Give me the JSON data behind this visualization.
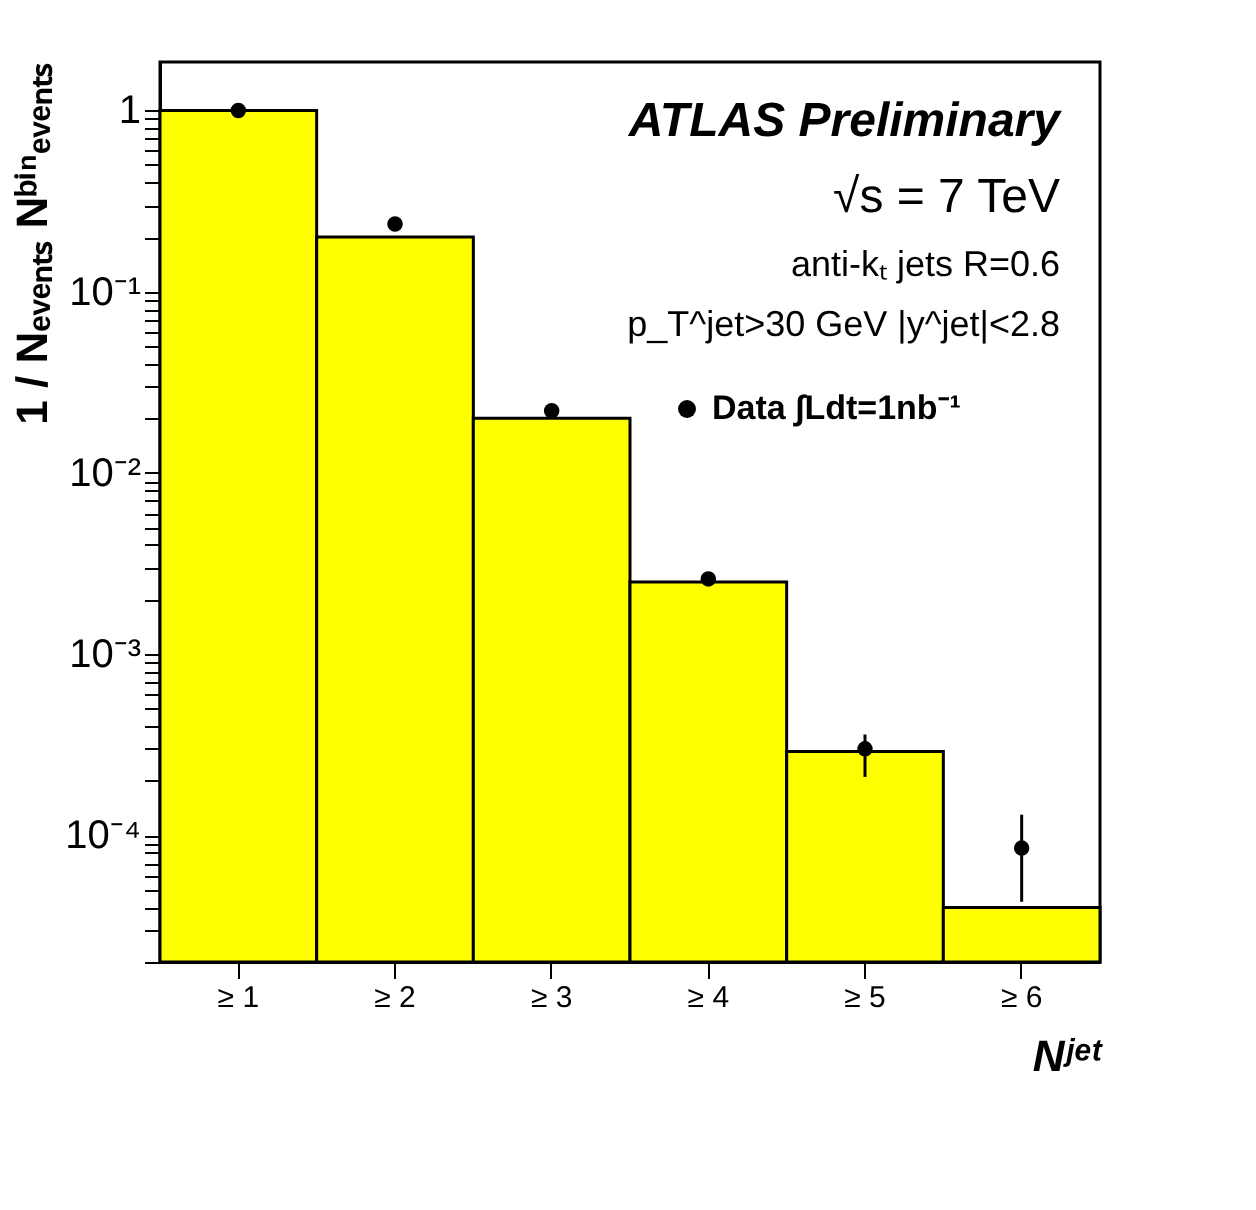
{
  "chart_data": {
    "type": "bar",
    "xlabel": "Nʲᵉᵗ",
    "ylabel": "1 / Nₑᵥₑₙₜₛ Nᵇⁱⁿₑᵥₑₙₜₛ",
    "categories": [
      "≥ 1",
      "≥ 2",
      "≥ 3",
      "≥ 4",
      "≥ 5",
      "≥ 6"
    ],
    "series": [
      {
        "color": "#ffff00",
        "values": [
          1,
          0.2,
          0.02,
          0.0025,
          0.00029,
          4e-05
        ]
      },
      {
        "type": "scatter",
        "name": "Data ∫Ldt=1nb⁻¹",
        "color": "#000000",
        "values": [
          1,
          0.236,
          0.022,
          0.0026,
          0.0003,
          8.5e-05
        ],
        "errors": [
          null,
          null,
          null,
          null,
          [
            0.00021,
            0.00036
          ],
          [
            4.3e-05,
            0.00013
          ]
        ]
      }
    ],
    "log": "y",
    "ylim": [
      2e-05,
      1.85
    ],
    "yticks": [
      {
        "value": 2e-05,
        "label": null
      },
      {
        "value": 3e-05,
        "label": null
      },
      {
        "value": 4e-05,
        "label": null
      },
      {
        "value": 5e-05,
        "label": null
      },
      {
        "value": 6e-05,
        "label": null
      },
      {
        "value": 7e-05,
        "label": null
      },
      {
        "value": 8e-05,
        "label": null
      },
      {
        "value": 9e-05,
        "label": null
      },
      {
        "value": 0.0001,
        "label": "10⁻⁴"
      },
      {
        "value": 0.0002,
        "label": null
      },
      {
        "value": 0.0003,
        "label": null
      },
      {
        "value": 0.0004,
        "label": null
      },
      {
        "value": 0.0005,
        "label": null
      },
      {
        "value": 0.0006,
        "label": null
      },
      {
        "value": 0.0007,
        "label": null
      },
      {
        "value": 0.0008,
        "label": null
      },
      {
        "value": 0.0009,
        "label": null
      },
      {
        "value": 0.001,
        "label": "10⁻³"
      },
      {
        "value": 0.002,
        "label": null
      },
      {
        "value": 0.003,
        "label": null
      },
      {
        "value": 0.004,
        "label": null
      },
      {
        "value": 0.005,
        "label": null
      },
      {
        "value": 0.006,
        "label": null
      },
      {
        "value": 0.007,
        "label": null
      },
      {
        "value": 0.008,
        "label": null
      },
      {
        "value": 0.009,
        "label": null
      },
      {
        "value": 0.01,
        "label": "10⁻²"
      },
      {
        "value": 0.02,
        "label": null
      },
      {
        "value": 0.03,
        "label": null
      },
      {
        "value": 0.04,
        "label": null
      },
      {
        "value": 0.05,
        "label": null
      },
      {
        "value": 0.06,
        "label": null
      },
      {
        "value": 0.07,
        "label": null
      },
      {
        "value": 0.08,
        "label": null
      },
      {
        "value": 0.09,
        "label": null
      },
      {
        "value": 0.1,
        "label": "10⁻¹"
      },
      {
        "value": 0.2,
        "label": null
      },
      {
        "value": 0.3,
        "label": null
      },
      {
        "value": 0.4,
        "label": null
      },
      {
        "value": 0.5,
        "label": null
      },
      {
        "value": 0.6,
        "label": null
      },
      {
        "value": 0.7,
        "label": null
      },
      {
        "value": 0.8,
        "label": null
      },
      {
        "value": 0.9,
        "label": null
      },
      1
    ],
    "annotations": [
      "ATLAS Preliminary",
      "√s = 7 TeV",
      "anti-kₜ jets R=0.6",
      "p_T^jet>30 GeV   |y^jet|<2.8"
    ],
    "grid": false,
    "legend": "top right",
    "marker": "circle"
  }
}
